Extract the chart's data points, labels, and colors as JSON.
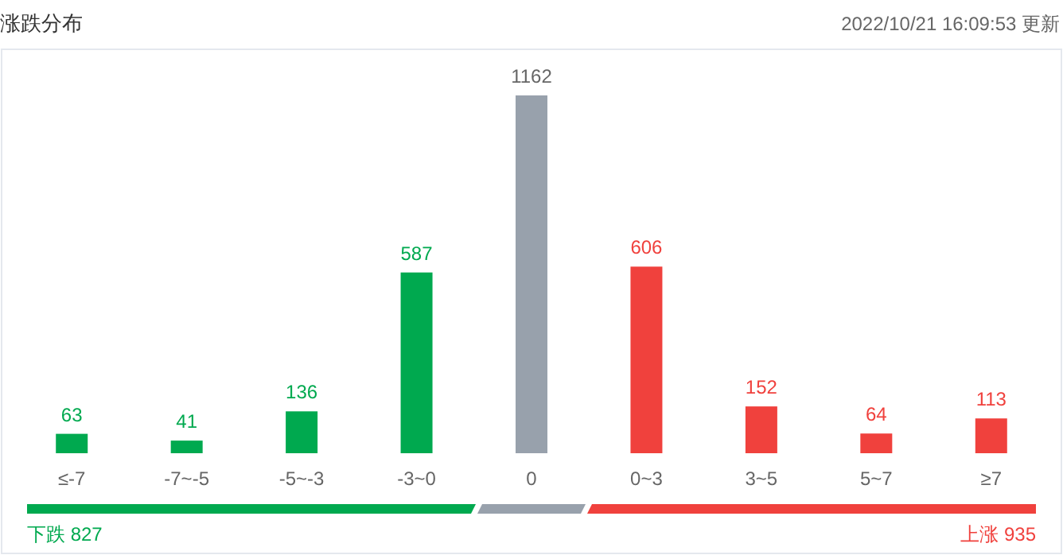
{
  "chart_data": {
    "type": "bar",
    "title": "涨跌分布",
    "categories": [
      "≤-7",
      "-7~-5",
      "-5~-3",
      "-3~0",
      "0",
      "0~3",
      "3~5",
      "5~7",
      "≥7"
    ],
    "values": [
      63,
      41,
      136,
      587,
      1162,
      606,
      152,
      64,
      113
    ],
    "colors": [
      "#00a94f",
      "#00a94f",
      "#00a94f",
      "#00a94f",
      "#98a1ac",
      "#f0413d",
      "#f0413d",
      "#f0413d",
      "#f0413d"
    ],
    "data_labels": true,
    "annotations": [
      "2022/10/21 16:09:53 更新",
      "下跌 827",
      "上涨 935"
    ]
  }
}
